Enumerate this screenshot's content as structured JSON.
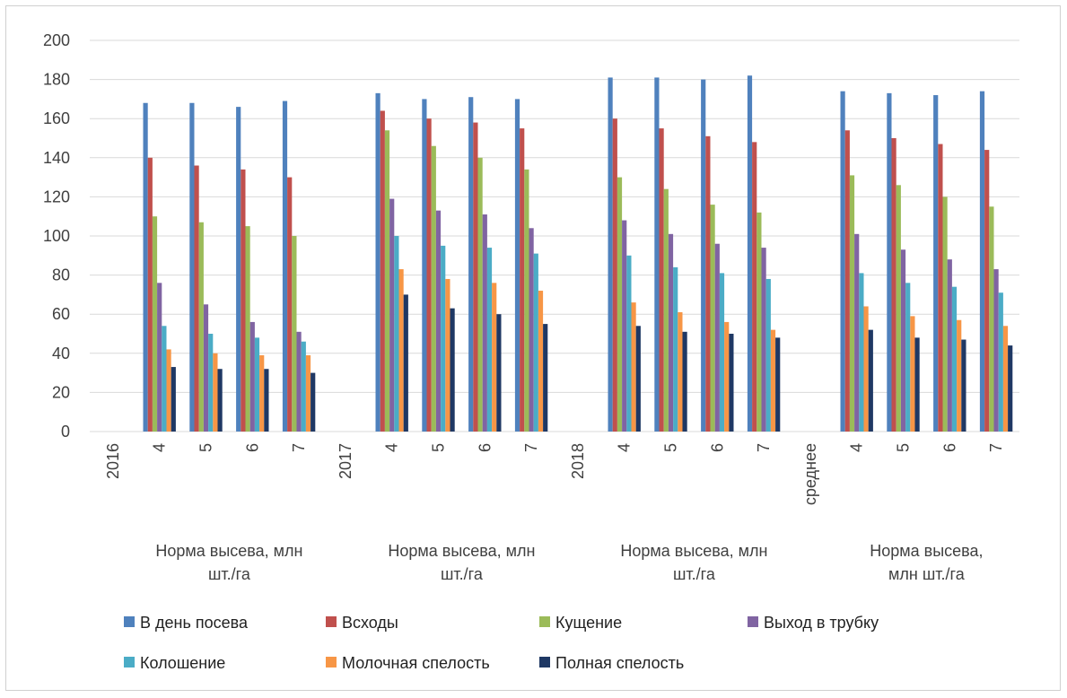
{
  "chart_data": {
    "type": "bar",
    "ylim": [
      0,
      200
    ],
    "yticks": [
      0,
      20,
      40,
      60,
      80,
      100,
      120,
      140,
      160,
      180,
      200
    ],
    "grid": true,
    "legend_position": "bottom",
    "categories": [
      "2016",
      "4",
      "5",
      "6",
      "7",
      "2017",
      "4",
      "5",
      "6",
      "7",
      "2018",
      "4",
      "5",
      "6",
      "7",
      "среднее",
      "4",
      "5",
      "6",
      "7"
    ],
    "group_labels": [
      [
        "Норма высева, млн",
        "шт./га"
      ],
      [
        "Норма высева, млн",
        "шт./га"
      ],
      [
        "Норма высева, млн",
        "шт./га"
      ],
      [
        "Норма высева,",
        "млн шт./га"
      ]
    ],
    "series": [
      {
        "name": "В день посева",
        "color": "#4f81bd",
        "values": [
          null,
          168,
          168,
          166,
          169,
          null,
          173,
          170,
          171,
          170,
          null,
          181,
          181,
          180,
          182,
          null,
          174,
          173,
          172,
          174
        ]
      },
      {
        "name": "Всходы",
        "color": "#c0504d",
        "values": [
          null,
          140,
          136,
          134,
          130,
          null,
          164,
          160,
          158,
          155,
          null,
          160,
          155,
          151,
          148,
          null,
          154,
          150,
          147,
          144
        ]
      },
      {
        "name": "Кущение",
        "color": "#9bbb59",
        "values": [
          null,
          110,
          107,
          105,
          100,
          null,
          154,
          146,
          140,
          134,
          null,
          130,
          124,
          116,
          112,
          null,
          131,
          126,
          120,
          115
        ]
      },
      {
        "name": "Выход в трубку",
        "color": "#8064a2",
        "values": [
          null,
          76,
          65,
          56,
          51,
          null,
          119,
          113,
          111,
          104,
          null,
          108,
          101,
          96,
          94,
          null,
          101,
          93,
          88,
          83
        ]
      },
      {
        "name": "Колошение",
        "color": "#4bacc6",
        "values": [
          null,
          54,
          50,
          48,
          46,
          null,
          100,
          95,
          94,
          91,
          null,
          90,
          84,
          81,
          78,
          null,
          81,
          76,
          74,
          71
        ]
      },
      {
        "name": "Молочная спелость",
        "color": "#f79646",
        "values": [
          null,
          42,
          40,
          39,
          39,
          null,
          83,
          78,
          76,
          72,
          null,
          66,
          61,
          56,
          52,
          null,
          64,
          59,
          57,
          54
        ]
      },
      {
        "name": "Полная спелость",
        "color": "#1f3864",
        "values": [
          null,
          33,
          32,
          32,
          30,
          null,
          70,
          63,
          60,
          55,
          null,
          54,
          51,
          50,
          48,
          null,
          52,
          48,
          47,
          44
        ]
      }
    ]
  }
}
